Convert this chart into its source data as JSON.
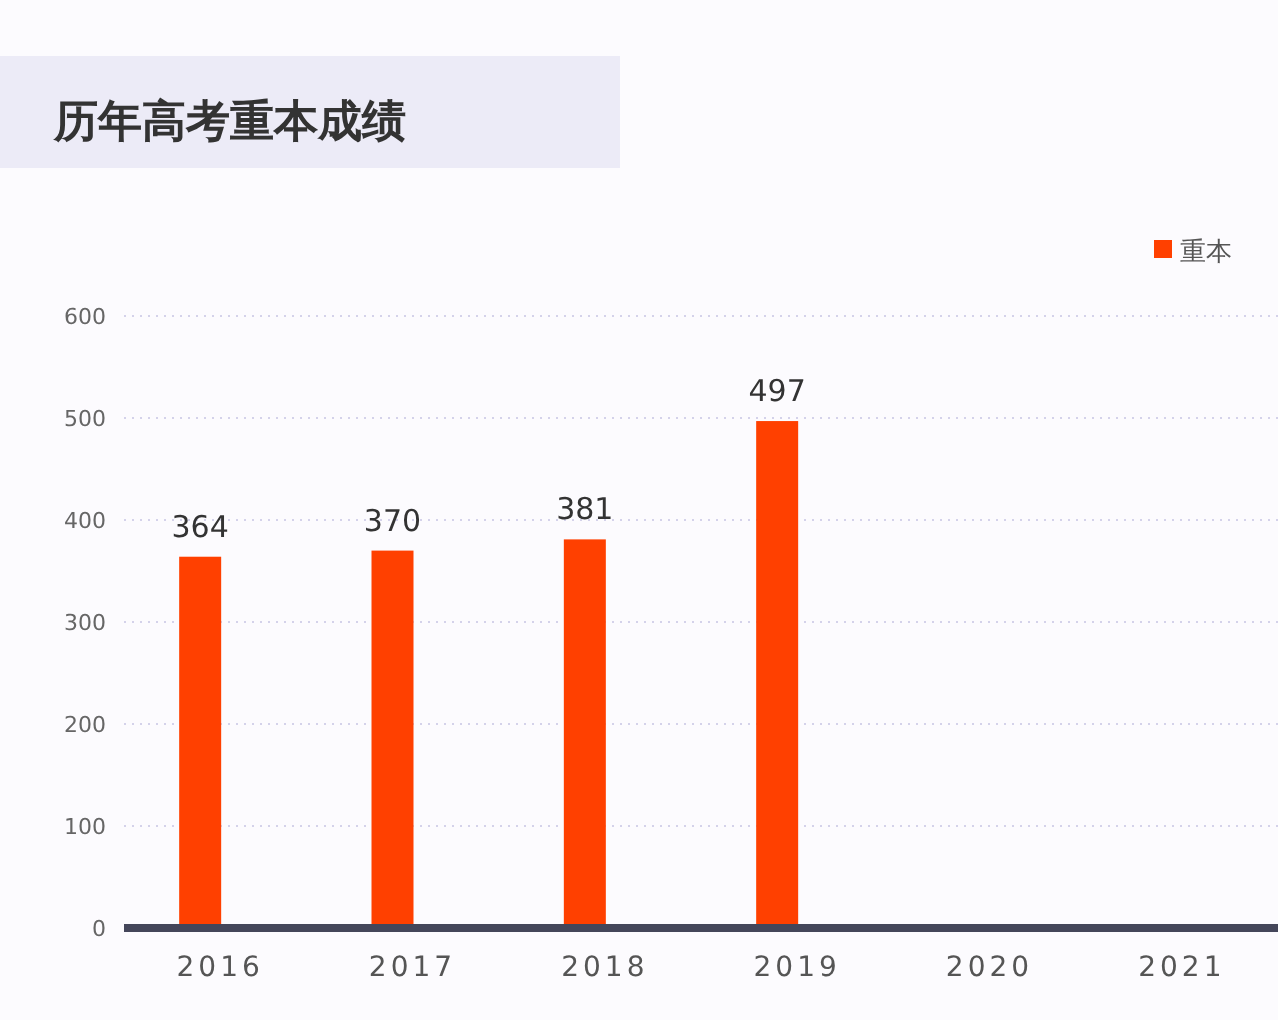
{
  "chart_data": {
    "type": "bar",
    "title": "历年高考重本成绩",
    "categories": [
      "2016",
      "2017",
      "2018",
      "2019",
      "2020",
      "2021"
    ],
    "series": [
      {
        "name": "重本",
        "color": "#ff4000",
        "values": [
          364,
          370,
          381,
          497,
          null,
          null
        ]
      }
    ],
    "ylim": [
      0,
      600
    ],
    "yticks": [
      0,
      100,
      200,
      300,
      400,
      500,
      600
    ],
    "grid": "y",
    "legend": "top right",
    "data_labels": true
  }
}
